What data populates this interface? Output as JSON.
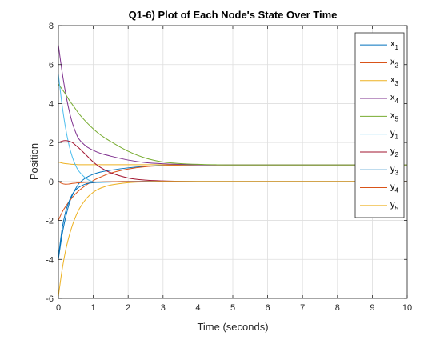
{
  "chart_data": {
    "type": "line",
    "title": "Q1-6) Plot of Each Node's State Over Time",
    "xlabel": "Time (seconds)",
    "ylabel": "Position",
    "xlim": [
      0,
      10
    ],
    "ylim": [
      -6,
      8
    ],
    "xticks": [
      0,
      1,
      2,
      3,
      4,
      5,
      6,
      7,
      8,
      9,
      10
    ],
    "yticks": [
      -6,
      -4,
      -2,
      0,
      2,
      4,
      6,
      8
    ],
    "xtick_labels": [
      "0",
      "1",
      "2",
      "3",
      "4",
      "5",
      "6",
      "7",
      "8",
      "9",
      "10"
    ],
    "ytick_labels": [
      "-6",
      "-4",
      "-2",
      "0",
      "2",
      "4",
      "6",
      "8"
    ],
    "grid": true,
    "legend_location": "top-right",
    "x": [
      0,
      0.1,
      0.2,
      0.3,
      0.4,
      0.5,
      0.6,
      0.8,
      1.0,
      1.2,
      1.5,
      2.0,
      2.5,
      3.0,
      3.5,
      4.0,
      4.5,
      5.0,
      6.0,
      7.0,
      8.0,
      9.0,
      10.0
    ],
    "series": [
      {
        "name": "x1",
        "legend_base": "x",
        "legend_sub": "1",
        "color": "#0072BD",
        "values": [
          -4.0,
          -2.8,
          -1.9,
          -1.2,
          -0.7,
          -0.35,
          -0.08,
          0.2,
          0.37,
          0.48,
          0.58,
          0.7,
          0.78,
          0.82,
          0.84,
          0.85,
          0.85,
          0.85,
          0.85,
          0.85,
          0.85,
          0.85,
          0.85
        ]
      },
      {
        "name": "x2",
        "legend_base": "x",
        "legend_sub": "2",
        "color": "#D95319",
        "values": [
          -2.0,
          -1.6,
          -1.3,
          -1.05,
          -0.82,
          -0.62,
          -0.45,
          -0.18,
          0.05,
          0.22,
          0.43,
          0.64,
          0.76,
          0.81,
          0.84,
          0.85,
          0.85,
          0.85,
          0.85,
          0.85,
          0.85,
          0.85,
          0.85
        ]
      },
      {
        "name": "x3",
        "legend_base": "x",
        "legend_sub": "3",
        "color": "#EDB120",
        "values": [
          1.0,
          0.95,
          0.92,
          0.9,
          0.88,
          0.87,
          0.86,
          0.86,
          0.86,
          0.86,
          0.86,
          0.86,
          0.86,
          0.86,
          0.86,
          0.86,
          0.85,
          0.85,
          0.85,
          0.85,
          0.85,
          0.85,
          0.85
        ]
      },
      {
        "name": "x4",
        "legend_base": "x",
        "legend_sub": "4",
        "color": "#7E2F8E",
        "values": [
          7.0,
          5.7,
          4.6,
          3.7,
          3.0,
          2.5,
          2.15,
          1.8,
          1.6,
          1.45,
          1.3,
          1.1,
          0.97,
          0.91,
          0.88,
          0.86,
          0.85,
          0.85,
          0.85,
          0.85,
          0.85,
          0.85,
          0.85
        ]
      },
      {
        "name": "x5",
        "legend_base": "x",
        "legend_sub": "5",
        "color": "#77AC30",
        "values": [
          5.0,
          4.75,
          4.5,
          4.2,
          3.95,
          3.7,
          3.45,
          3.05,
          2.7,
          2.4,
          2.05,
          1.55,
          1.2,
          1.0,
          0.92,
          0.88,
          0.86,
          0.85,
          0.85,
          0.85,
          0.85,
          0.85,
          0.85
        ]
      },
      {
        "name": "y1",
        "legend_base": "y",
        "legend_sub": "1",
        "color": "#4DBEEE",
        "values": [
          5.5,
          4.0,
          2.8,
          1.9,
          1.25,
          0.8,
          0.5,
          0.15,
          -0.02,
          -0.05,
          -0.03,
          0.0,
          0.01,
          0.01,
          0.01,
          0.0,
          0.0,
          0.0,
          0.0,
          0.0,
          0.0,
          0.0,
          0.0
        ]
      },
      {
        "name": "y2",
        "legend_base": "y",
        "legend_sub": "2",
        "color": "#A2142F",
        "values": [
          2.0,
          2.07,
          2.1,
          2.07,
          2.0,
          1.85,
          1.7,
          1.35,
          1.0,
          0.73,
          0.45,
          0.18,
          0.07,
          0.03,
          0.01,
          0.0,
          0.0,
          0.0,
          0.0,
          0.0,
          0.0,
          0.0,
          0.0
        ]
      },
      {
        "name": "y3",
        "legend_base": "y",
        "legend_sub": "3",
        "color": "#0072BD",
        "values": [
          -3.9,
          -2.5,
          -1.6,
          -1.05,
          -0.65,
          -0.42,
          -0.28,
          -0.12,
          -0.06,
          -0.03,
          -0.01,
          0.0,
          0.0,
          0.0,
          0.0,
          0.0,
          0.0,
          0.0,
          0.0,
          0.0,
          0.0,
          0.0,
          0.0
        ]
      },
      {
        "name": "y4",
        "legend_base": "y",
        "legend_sub": "4",
        "color": "#D95319",
        "values": [
          0.0,
          -0.1,
          -0.14,
          -0.13,
          -0.1,
          -0.08,
          -0.06,
          -0.04,
          -0.03,
          -0.02,
          -0.01,
          0.0,
          0.0,
          0.0,
          0.0,
          0.0,
          0.0,
          0.0,
          0.0,
          0.0,
          0.0,
          0.0,
          0.0
        ]
      },
      {
        "name": "y5",
        "legend_base": "y",
        "legend_sub": "5",
        "color": "#EDB120",
        "values": [
          -5.9,
          -4.6,
          -3.6,
          -2.85,
          -2.25,
          -1.78,
          -1.4,
          -0.88,
          -0.55,
          -0.35,
          -0.18,
          -0.06,
          -0.02,
          0.0,
          0.0,
          0.0,
          0.0,
          0.0,
          0.0,
          0.0,
          0.0,
          0.0,
          0.0
        ]
      }
    ]
  }
}
